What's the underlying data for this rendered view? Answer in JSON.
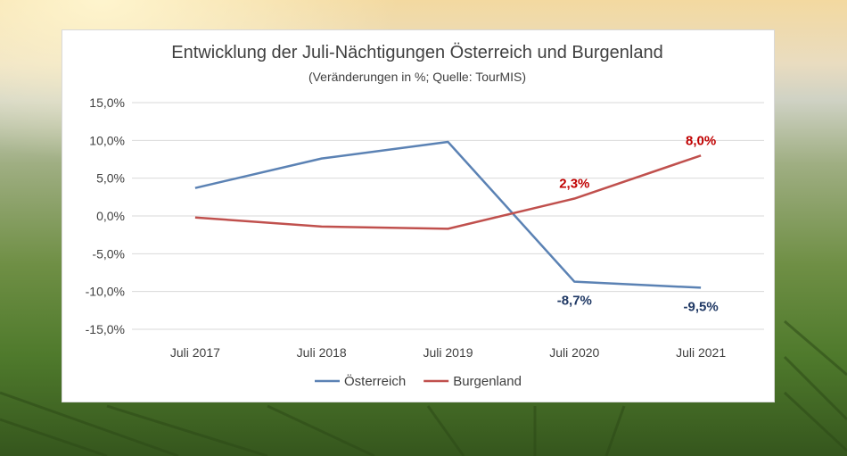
{
  "colors": {
    "oesterreich": "#5b82b4",
    "burgenland": "#c0504d",
    "label_blue": "#1f3864",
    "label_red": "#c00000",
    "grid": "#d9d9d9"
  },
  "chart_data": {
    "type": "line",
    "title": "Entwicklung der Juli-Nächtigungen Österreich und Burgenland",
    "subtitle": "(Veränderungen in %; Quelle: TourMIS)",
    "categories": [
      "Juli 2017",
      "Juli 2018",
      "Juli 2019",
      "Juli 2020",
      "Juli 2021"
    ],
    "ylim": [
      -15,
      15
    ],
    "yticks": [
      15,
      10,
      5,
      0,
      -5,
      -10,
      -15
    ],
    "ytick_labels": [
      "15,0%",
      "10,0%",
      "5,0%",
      "0,0%",
      "-5,0%",
      "-10,0%",
      "-15,0%"
    ],
    "grid": true,
    "legend_position": "bottom",
    "series": [
      {
        "name": "Österreich",
        "values": [
          3.7,
          7.6,
          9.8,
          -8.7,
          -9.5
        ],
        "data_labels": [
          "",
          "",
          "",
          "-8,7%",
          "-9,5%"
        ]
      },
      {
        "name": "Burgenland",
        "values": [
          -0.2,
          -1.4,
          -1.7,
          2.3,
          8.0
        ],
        "data_labels": [
          "",
          "",
          "",
          "2,3%",
          "8,0%"
        ]
      }
    ]
  }
}
